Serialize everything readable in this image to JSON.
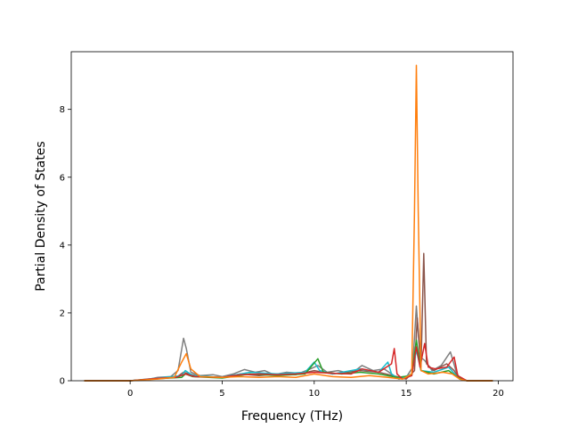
{
  "chart_data": {
    "type": "line",
    "title": "",
    "xlabel": "Frequency (THz)",
    "ylabel": "Partial Density of States",
    "xlim": [
      -3.2,
      20.8
    ],
    "ylim": [
      0,
      9.7
    ],
    "xticks": [
      0,
      5,
      10,
      15,
      20
    ],
    "xtick_labels": [
      "0",
      "5",
      "10",
      "15",
      "20"
    ],
    "yticks": [
      0,
      2,
      4,
      6,
      8
    ],
    "ytick_labels": [
      "0",
      "2",
      "4",
      "6",
      "8"
    ],
    "grid": false,
    "legend": "none",
    "series": [
      {
        "color": "#7f7f7f",
        "points": [
          [
            -2.5,
            0
          ],
          [
            0,
            0
          ],
          [
            0.8,
            0.02
          ],
          [
            1.5,
            0.1
          ],
          [
            2.2,
            0.12
          ],
          [
            2.6,
            0.3
          ],
          [
            2.9,
            1.25
          ],
          [
            3.05,
            0.95
          ],
          [
            3.3,
            0.25
          ],
          [
            3.8,
            0.15
          ],
          [
            4.5,
            0.18
          ],
          [
            5,
            0.12
          ],
          [
            5.6,
            0.2
          ],
          [
            6.2,
            0.33
          ],
          [
            6.8,
            0.25
          ],
          [
            7.3,
            0.3
          ],
          [
            7.8,
            0.18
          ],
          [
            8.5,
            0.25
          ],
          [
            9.2,
            0.22
          ],
          [
            9.8,
            0.35
          ],
          [
            10.2,
            0.45
          ],
          [
            10.7,
            0.25
          ],
          [
            11.3,
            0.3
          ],
          [
            12,
            0.2
          ],
          [
            12.6,
            0.45
          ],
          [
            13.2,
            0.3
          ],
          [
            13.8,
            0.35
          ],
          [
            14.2,
            0.2
          ],
          [
            14.6,
            0.05
          ],
          [
            15.0,
            0.1
          ],
          [
            15.35,
            0.4
          ],
          [
            15.55,
            2.2
          ],
          [
            15.75,
            0.7
          ],
          [
            16.0,
            0.6
          ],
          [
            16.4,
            0.3
          ],
          [
            16.9,
            0.45
          ],
          [
            17.4,
            0.85
          ],
          [
            17.7,
            0.3
          ],
          [
            17.9,
            0.05
          ],
          [
            18.3,
            0
          ],
          [
            19.7,
            0
          ]
        ]
      },
      {
        "color": "#8c564b",
        "points": [
          [
            -2.5,
            0
          ],
          [
            0,
            0
          ],
          [
            1.2,
            0.05
          ],
          [
            1.8,
            0.08
          ],
          [
            2.5,
            0.1
          ],
          [
            2.9,
            0.25
          ],
          [
            3.2,
            0.2
          ],
          [
            3.8,
            0.12
          ],
          [
            5,
            0.1
          ],
          [
            6,
            0.2
          ],
          [
            7,
            0.15
          ],
          [
            8,
            0.2
          ],
          [
            9,
            0.18
          ],
          [
            10,
            0.3
          ],
          [
            11,
            0.2
          ],
          [
            12.5,
            0.3
          ],
          [
            13.5,
            0.25
          ],
          [
            14.3,
            0.15
          ],
          [
            15.0,
            0.05
          ],
          [
            15.45,
            0.3
          ],
          [
            15.6,
            1.85
          ],
          [
            15.8,
            0.4
          ],
          [
            15.95,
            3.75
          ],
          [
            16.1,
            0.5
          ],
          [
            16.5,
            0.3
          ],
          [
            17.2,
            0.5
          ],
          [
            17.6,
            0.3
          ],
          [
            17.9,
            0.05
          ],
          [
            18.3,
            0
          ],
          [
            19.7,
            0
          ]
        ]
      },
      {
        "color": "#17becf",
        "points": [
          [
            -2.5,
            0
          ],
          [
            0,
            0
          ],
          [
            1.5,
            0.08
          ],
          [
            2.8,
            0.15
          ],
          [
            3.0,
            0.3
          ],
          [
            3.4,
            0.15
          ],
          [
            5,
            0.1
          ],
          [
            6.5,
            0.25
          ],
          [
            8,
            0.2
          ],
          [
            9.5,
            0.25
          ],
          [
            10,
            0.55
          ],
          [
            10.3,
            0.3
          ],
          [
            11,
            0.2
          ],
          [
            12.5,
            0.35
          ],
          [
            13.5,
            0.25
          ],
          [
            14.0,
            0.55
          ],
          [
            14.2,
            0.2
          ],
          [
            14.6,
            0.05
          ],
          [
            15.3,
            0.2
          ],
          [
            15.55,
            0.9
          ],
          [
            15.8,
            0.3
          ],
          [
            16.5,
            0.25
          ],
          [
            17.3,
            0.4
          ],
          [
            17.8,
            0.1
          ],
          [
            18.3,
            0
          ],
          [
            19.7,
            0
          ]
        ]
      },
      {
        "color": "#2ca02c",
        "points": [
          [
            -2.5,
            0
          ],
          [
            0,
            0
          ],
          [
            1.5,
            0.06
          ],
          [
            2.8,
            0.1
          ],
          [
            3.0,
            0.2
          ],
          [
            3.4,
            0.12
          ],
          [
            5,
            0.08
          ],
          [
            6.5,
            0.2
          ],
          [
            8,
            0.15
          ],
          [
            9.5,
            0.2
          ],
          [
            10.2,
            0.65
          ],
          [
            10.5,
            0.25
          ],
          [
            11.5,
            0.2
          ],
          [
            12.5,
            0.25
          ],
          [
            13.5,
            0.2
          ],
          [
            14.5,
            0.1
          ],
          [
            15.3,
            0.15
          ],
          [
            15.55,
            1.2
          ],
          [
            15.8,
            0.3
          ],
          [
            16.5,
            0.2
          ],
          [
            17.3,
            0.3
          ],
          [
            17.8,
            0.1
          ],
          [
            18.3,
            0
          ],
          [
            19.7,
            0
          ]
        ]
      },
      {
        "color": "#d62728",
        "points": [
          [
            -2.5,
            0
          ],
          [
            0,
            0
          ],
          [
            1.5,
            0.07
          ],
          [
            2.5,
            0.1
          ],
          [
            3.0,
            0.2
          ],
          [
            3.5,
            0.12
          ],
          [
            5,
            0.1
          ],
          [
            6,
            0.18
          ],
          [
            7,
            0.2
          ],
          [
            8,
            0.18
          ],
          [
            9,
            0.2
          ],
          [
            10,
            0.25
          ],
          [
            11,
            0.22
          ],
          [
            12,
            0.2
          ],
          [
            12.6,
            0.35
          ],
          [
            13.5,
            0.25
          ],
          [
            14.2,
            0.5
          ],
          [
            14.35,
            0.95
          ],
          [
            14.5,
            0.2
          ],
          [
            14.8,
            0.05
          ],
          [
            15.3,
            0.15
          ],
          [
            15.55,
            1.0
          ],
          [
            15.75,
            0.4
          ],
          [
            16.0,
            1.1
          ],
          [
            16.2,
            0.4
          ],
          [
            16.6,
            0.35
          ],
          [
            17.2,
            0.4
          ],
          [
            17.6,
            0.7
          ],
          [
            17.8,
            0.15
          ],
          [
            18.3,
            0
          ],
          [
            19.7,
            0
          ]
        ]
      },
      {
        "color": "#ff7f0e",
        "points": [
          [
            -2.5,
            0
          ],
          [
            0,
            0
          ],
          [
            1.5,
            0.05
          ],
          [
            2.4,
            0.1
          ],
          [
            2.8,
            0.55
          ],
          [
            3.05,
            0.8
          ],
          [
            3.3,
            0.35
          ],
          [
            3.8,
            0.12
          ],
          [
            5,
            0.1
          ],
          [
            6,
            0.12
          ],
          [
            7,
            0.1
          ],
          [
            8,
            0.12
          ],
          [
            9,
            0.1
          ],
          [
            10,
            0.2
          ],
          [
            11,
            0.12
          ],
          [
            12,
            0.1
          ],
          [
            13,
            0.15
          ],
          [
            14,
            0.1
          ],
          [
            14.8,
            0.05
          ],
          [
            15.3,
            0.2
          ],
          [
            15.45,
            5.0
          ],
          [
            15.55,
            9.3
          ],
          [
            15.65,
            5.0
          ],
          [
            15.8,
            0.3
          ],
          [
            16.2,
            0.2
          ],
          [
            17,
            0.25
          ],
          [
            17.5,
            0.2
          ],
          [
            17.9,
            0.05
          ],
          [
            18.3,
            0
          ],
          [
            19.7,
            0
          ]
        ]
      }
    ]
  }
}
